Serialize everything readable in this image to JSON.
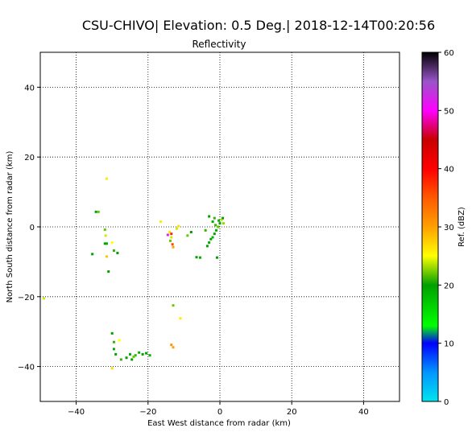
{
  "chart_data": {
    "type": "heatmap",
    "suptitle": "CSU-CHIVO| Elevation: 0.5 Deg.| 2018-12-14T00:20:56",
    "title": "Reflectivity",
    "xlabel": "East West distance from radar (km)",
    "ylabel": "North South distance from radar (km)",
    "xlim": [
      -50,
      50
    ],
    "ylim": [
      -50,
      50
    ],
    "xticks": [
      -40,
      -20,
      0,
      20,
      40
    ],
    "yticks": [
      -40,
      -20,
      0,
      20,
      40
    ],
    "xtick_labels": [
      "−40",
      "−20",
      "0",
      "20",
      "40"
    ],
    "ytick_labels": [
      "−40",
      "−20",
      "0",
      "20",
      "40"
    ],
    "grid": true,
    "colorbar": {
      "label": "Ref. (dBZ)",
      "range": [
        0,
        60
      ],
      "ticks": [
        0,
        10,
        20,
        30,
        40,
        50,
        60
      ],
      "tick_labels": [
        "0",
        "10",
        "20",
        "30",
        "40",
        "50",
        "60"
      ],
      "stops": [
        {
          "v": 0,
          "c": "#00e5ee"
        },
        {
          "v": 5,
          "c": "#0096ff"
        },
        {
          "v": 10,
          "c": "#0000ff"
        },
        {
          "v": 13,
          "c": "#00ff00"
        },
        {
          "v": 20,
          "c": "#00a000"
        },
        {
          "v": 25,
          "c": "#ffff00"
        },
        {
          "v": 30,
          "c": "#ffa000"
        },
        {
          "v": 35,
          "c": "#ff5a00"
        },
        {
          "v": 40,
          "c": "#ff0000"
        },
        {
          "v": 45,
          "c": "#c80000"
        },
        {
          "v": 50,
          "c": "#ff00ff"
        },
        {
          "v": 55,
          "c": "#9955c8"
        },
        {
          "v": 60,
          "c": "#000000"
        }
      ]
    },
    "echoes": [
      {
        "x": -31.5,
        "y": 13.8,
        "dbz": 26
      },
      {
        "x": -34.5,
        "y": 4.3,
        "dbz": 20
      },
      {
        "x": -33.8,
        "y": 4.3,
        "dbz": 22
      },
      {
        "x": -32.0,
        "y": -0.8,
        "dbz": 22
      },
      {
        "x": -31.8,
        "y": -2.5,
        "dbz": 24
      },
      {
        "x": -32.0,
        "y": -4.8,
        "dbz": 20
      },
      {
        "x": -31.5,
        "y": -4.8,
        "dbz": 19
      },
      {
        "x": -30.0,
        "y": -4.5,
        "dbz": 25
      },
      {
        "x": -29.5,
        "y": -6.8,
        "dbz": 21
      },
      {
        "x": -28.5,
        "y": -7.5,
        "dbz": 20
      },
      {
        "x": -31.5,
        "y": -8.5,
        "dbz": 28
      },
      {
        "x": -35.5,
        "y": -7.8,
        "dbz": 20
      },
      {
        "x": -31.0,
        "y": -12.8,
        "dbz": 20
      },
      {
        "x": -49.0,
        "y": -20.5,
        "dbz": 24
      },
      {
        "x": -16.5,
        "y": 1.5,
        "dbz": 26
      },
      {
        "x": -14.0,
        "y": -1.5,
        "dbz": 26
      },
      {
        "x": -13.5,
        "y": -2.0,
        "dbz": 38
      },
      {
        "x": -14.5,
        "y": -2.3,
        "dbz": 52
      },
      {
        "x": -13.5,
        "y": -3.0,
        "dbz": 24
      },
      {
        "x": -13.8,
        "y": -4.0,
        "dbz": 22
      },
      {
        "x": -13.2,
        "y": -5.0,
        "dbz": 36
      },
      {
        "x": -13.0,
        "y": -5.8,
        "dbz": 30
      },
      {
        "x": -12.0,
        "y": -0.5,
        "dbz": 24
      },
      {
        "x": -11.5,
        "y": 0.2,
        "dbz": 27
      },
      {
        "x": -13.0,
        "y": -22.5,
        "dbz": 22
      },
      {
        "x": -11.0,
        "y": -26.2,
        "dbz": 26
      },
      {
        "x": -13.5,
        "y": -33.8,
        "dbz": 31
      },
      {
        "x": -13.0,
        "y": -34.5,
        "dbz": 30
      },
      {
        "x": -9.0,
        "y": -2.5,
        "dbz": 22
      },
      {
        "x": -8.0,
        "y": -1.5,
        "dbz": 20
      },
      {
        "x": -6.5,
        "y": -8.7,
        "dbz": 20
      },
      {
        "x": -5.5,
        "y": -8.8,
        "dbz": 19
      },
      {
        "x": -4.0,
        "y": -1.0,
        "dbz": 21
      },
      {
        "x": -3.5,
        "y": -5.5,
        "dbz": 20
      },
      {
        "x": -3.0,
        "y": -4.5,
        "dbz": 19
      },
      {
        "x": -2.5,
        "y": -3.5,
        "dbz": 20
      },
      {
        "x": -2.0,
        "y": -3.0,
        "dbz": 18
      },
      {
        "x": -1.5,
        "y": -2.0,
        "dbz": 20
      },
      {
        "x": -1.0,
        "y": -1.0,
        "dbz": 19
      },
      {
        "x": -0.5,
        "y": 0.0,
        "dbz": 22
      },
      {
        "x": 0.0,
        "y": 1.0,
        "dbz": 20
      },
      {
        "x": 0.5,
        "y": 2.0,
        "dbz": 24
      },
      {
        "x": -2.0,
        "y": 1.5,
        "dbz": 19
      },
      {
        "x": -1.5,
        "y": 2.5,
        "dbz": 21
      },
      {
        "x": 1.0,
        "y": 1.0,
        "dbz": 23
      },
      {
        "x": -1.2,
        "y": 0.5,
        "dbz": 21
      },
      {
        "x": -0.3,
        "y": 1.8,
        "dbz": 19
      },
      {
        "x": 0.8,
        "y": 2.5,
        "dbz": 20
      },
      {
        "x": -3.0,
        "y": 3.0,
        "dbz": 20
      },
      {
        "x": -0.8,
        "y": -8.8,
        "dbz": 20
      },
      {
        "x": -30.0,
        "y": -30.5,
        "dbz": 20
      },
      {
        "x": -29.5,
        "y": -33.0,
        "dbz": 21
      },
      {
        "x": -28.0,
        "y": -32.5,
        "dbz": 25
      },
      {
        "x": -29.5,
        "y": -35.0,
        "dbz": 19
      },
      {
        "x": -29.0,
        "y": -36.5,
        "dbz": 20
      },
      {
        "x": -27.5,
        "y": -38.0,
        "dbz": 21
      },
      {
        "x": -26.0,
        "y": -37.5,
        "dbz": 20
      },
      {
        "x": -25.0,
        "y": -36.5,
        "dbz": 19
      },
      {
        "x": -24.5,
        "y": -38.0,
        "dbz": 20
      },
      {
        "x": -23.5,
        "y": -36.8,
        "dbz": 21
      },
      {
        "x": -22.5,
        "y": -36.0,
        "dbz": 19
      },
      {
        "x": -21.5,
        "y": -36.5,
        "dbz": 20
      },
      {
        "x": -20.5,
        "y": -36.2,
        "dbz": 20
      },
      {
        "x": -19.5,
        "y": -36.8,
        "dbz": 19
      },
      {
        "x": -24.0,
        "y": -37.2,
        "dbz": 22
      },
      {
        "x": -30.0,
        "y": -40.5,
        "dbz": 27
      }
    ]
  }
}
